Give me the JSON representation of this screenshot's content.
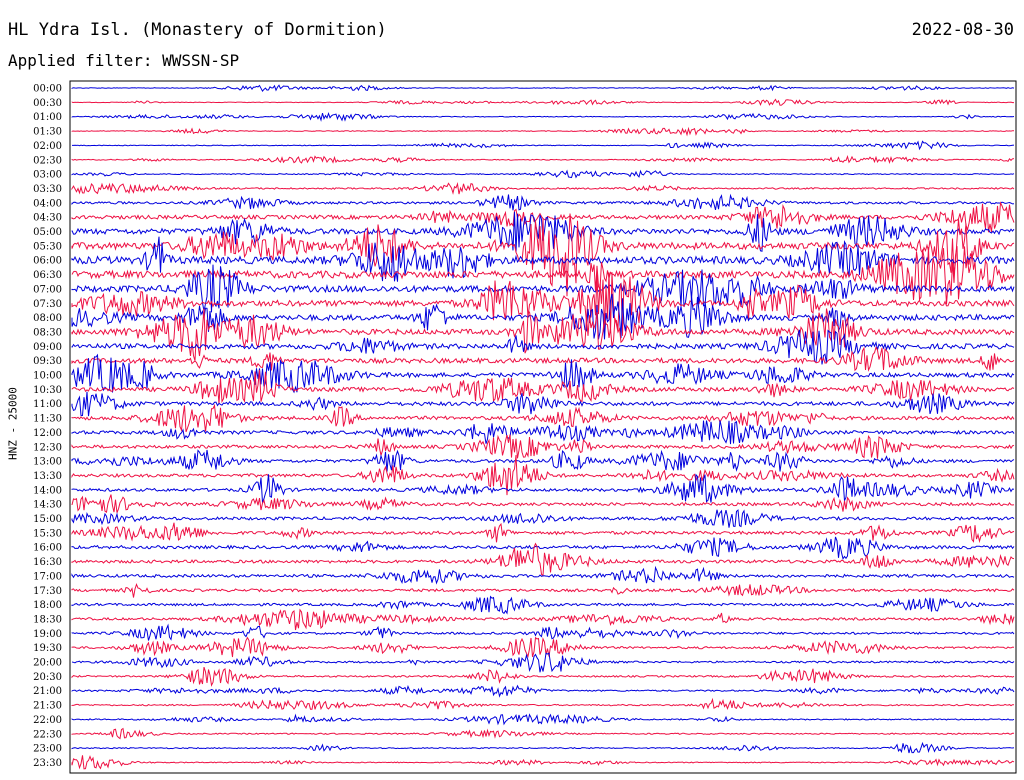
{
  "header": {
    "title": "HL Ydra Isl. (Monastery of Dormition)",
    "date": "2022-08-30",
    "filter": "Applied filter: WWSSN-SP"
  },
  "chart_data": {
    "type": "helicorder",
    "ylabel": "HNZ - 25000",
    "colors": [
      "#0000dd",
      "#ee1144"
    ],
    "rows": [
      "00:00",
      "00:30",
      "01:00",
      "01:30",
      "02:00",
      "02:30",
      "03:00",
      "03:30",
      "04:00",
      "04:30",
      "05:00",
      "05:30",
      "06:00",
      "06:30",
      "07:00",
      "07:30",
      "08:00",
      "08:30",
      "09:00",
      "09:30",
      "10:00",
      "10:30",
      "11:00",
      "11:30",
      "12:00",
      "12:30",
      "13:00",
      "13:30",
      "14:00",
      "14:30",
      "15:00",
      "15:30",
      "16:00",
      "16:30",
      "17:00",
      "17:30",
      "18:00",
      "18:30",
      "19:00",
      "19:30",
      "20:00",
      "20:30",
      "21:00",
      "21:30",
      "22:00",
      "22:30",
      "23:00",
      "23:30"
    ],
    "noise_level": [
      0.5,
      0.5,
      0.6,
      0.6,
      0.6,
      0.7,
      0.8,
      1.2,
      2.0,
      3.2,
      4.5,
      5.5,
      6.0,
      5.8,
      5.2,
      4.8,
      4.6,
      4.4,
      4.2,
      4.0,
      3.6,
      3.4,
      3.2,
      3.0,
      2.8,
      2.6,
      2.6,
      2.6,
      2.5,
      2.5,
      2.5,
      2.6,
      2.6,
      2.5,
      2.4,
      2.2,
      2.0,
      2.0,
      1.8,
      1.7,
      1.5,
      1.4,
      1.2,
      1.1,
      1.0,
      1.0,
      0.9,
      0.8
    ]
  }
}
